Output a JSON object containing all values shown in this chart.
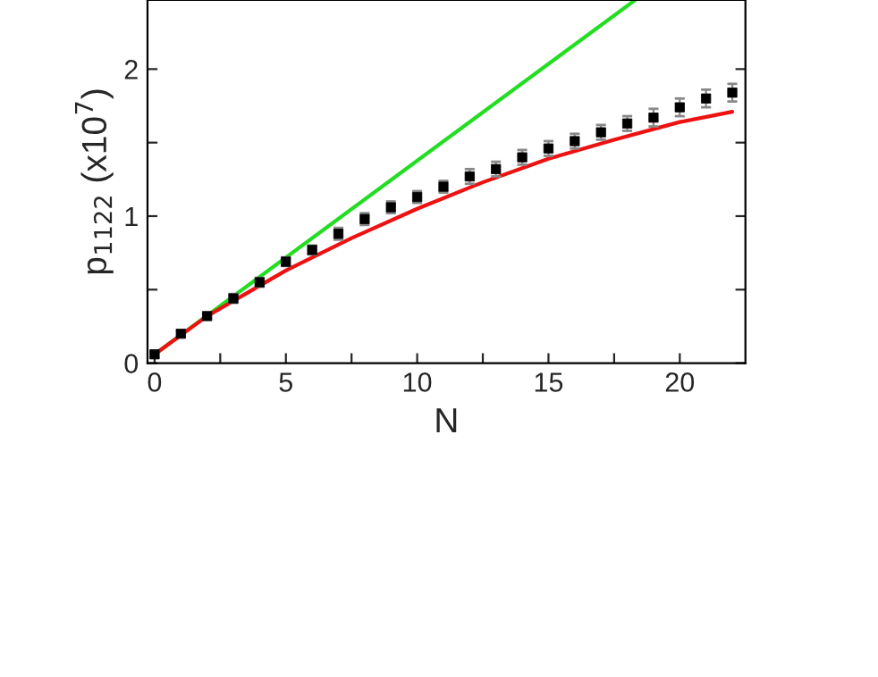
{
  "chart_data": {
    "type": "scatter",
    "xlabel": "N",
    "ylabel": "p$_{1122}$ (x10$^{7}$)",
    "xlim": [
      -0.27,
      22.5
    ],
    "ylim": [
      0,
      2.47
    ],
    "xticks": [
      0,
      {
        "value": 2.5,
        "label": null
      },
      5,
      {
        "value": 7.5,
        "label": null
      },
      10,
      {
        "value": 12.5,
        "label": null
      },
      15,
      {
        "value": 17.5,
        "label": null
      },
      20
    ],
    "yticks": [
      0,
      {
        "value": 0.5,
        "label": null
      },
      1,
      {
        "value": 1.5,
        "label": null
      },
      2
    ],
    "grid": false,
    "legend": false,
    "series": [
      {
        "type": "line",
        "color": "#22dd22",
        "line_style": "solid",
        "marker": "none",
        "x": [
          0,
          18.3
        ],
        "values": [
          0.06,
          2.47
        ]
      },
      {
        "type": "line",
        "color": "#ee1111",
        "line_style": "solid",
        "marker": "none",
        "x": [
          0,
          2,
          5,
          7.5,
          10,
          12.5,
          15,
          17.5,
          20,
          22
        ],
        "values": [
          0.06,
          0.32,
          0.63,
          0.85,
          1.05,
          1.23,
          1.39,
          1.52,
          1.64,
          1.71
        ]
      },
      {
        "color": "#000000",
        "marker": "square",
        "x": [
          0,
          1,
          2,
          3,
          4,
          5,
          6,
          7,
          8,
          9,
          10,
          11,
          12,
          13,
          14,
          15,
          16,
          17,
          18,
          19,
          20,
          21,
          22
        ],
        "values": [
          0.06,
          0.2,
          0.32,
          0.44,
          0.55,
          0.69,
          0.77,
          0.88,
          0.98,
          1.06,
          1.13,
          1.2,
          1.27,
          1.32,
          1.4,
          1.46,
          1.51,
          1.57,
          1.63,
          1.67,
          1.74,
          1.8,
          1.84
        ],
        "errors": [
          0.02,
          0.02,
          0.02,
          0.03,
          0.03,
          0.03,
          0.03,
          0.04,
          0.04,
          0.04,
          0.04,
          0.04,
          0.05,
          0.05,
          0.05,
          0.05,
          0.05,
          0.05,
          0.05,
          0.06,
          0.06,
          0.06,
          0.06
        ]
      }
    ]
  }
}
